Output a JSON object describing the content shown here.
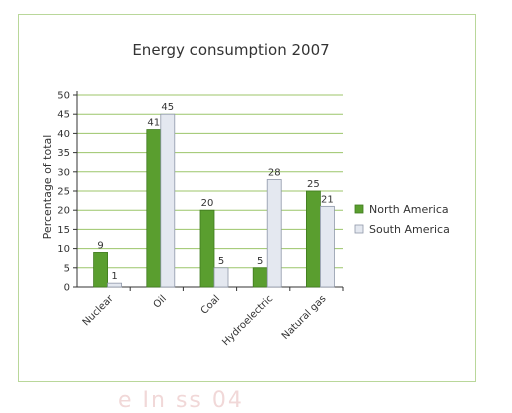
{
  "chart_data": {
    "type": "bar",
    "title": "Energy consumption 2007",
    "ylabel": "Percentage of total",
    "xlabel": "",
    "ylim": [
      0,
      50
    ],
    "yticks": [
      0,
      5,
      10,
      15,
      20,
      25,
      30,
      35,
      40,
      45,
      50
    ],
    "grid": true,
    "legend_position": "right",
    "categories": [
      "Nuclear",
      "Oil",
      "Coal",
      "Hydroelectric",
      "Natural gas"
    ],
    "series": [
      {
        "name": "North America",
        "values": [
          9,
          41,
          20,
          5,
          25
        ],
        "color": "#5a9e2f"
      },
      {
        "name": "South America",
        "values": [
          1,
          45,
          5,
          28,
          21
        ],
        "color": "#e4e8f0"
      }
    ]
  },
  "watermark": "e In  ss 04"
}
